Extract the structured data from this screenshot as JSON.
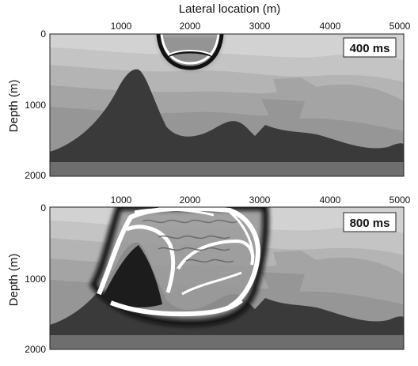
{
  "figure": {
    "x_axis_title": "Lateral location (m)",
    "y_axis_title": "Depth (m)",
    "x_ticks": [
      "1000",
      "2000",
      "3000",
      "4000",
      "5000"
    ],
    "y_ticks": [
      "0",
      "1000",
      "2000"
    ],
    "panels": [
      {
        "time_label": "400 ms",
        "y_ticks": [
          "0",
          "1000",
          "2000"
        ],
        "x_ticks": []
      },
      {
        "time_label": "800 ms",
        "y_ticks": [
          "0",
          "1000",
          "2000"
        ],
        "x_ticks": [
          "1000",
          "2000",
          "3000",
          "4000",
          "5000"
        ]
      }
    ],
    "colors": {
      "layer_top": "#d2d2d2",
      "layer_2": "#c2c2c2",
      "layer_3": "#b2b2b2",
      "layer_4": "#a3a3a3",
      "layer_5": "#959595",
      "salt_body": "#3a3a3a",
      "bottom_layer": "#6e6e6e",
      "wavefront": "#ffffff"
    }
  }
}
